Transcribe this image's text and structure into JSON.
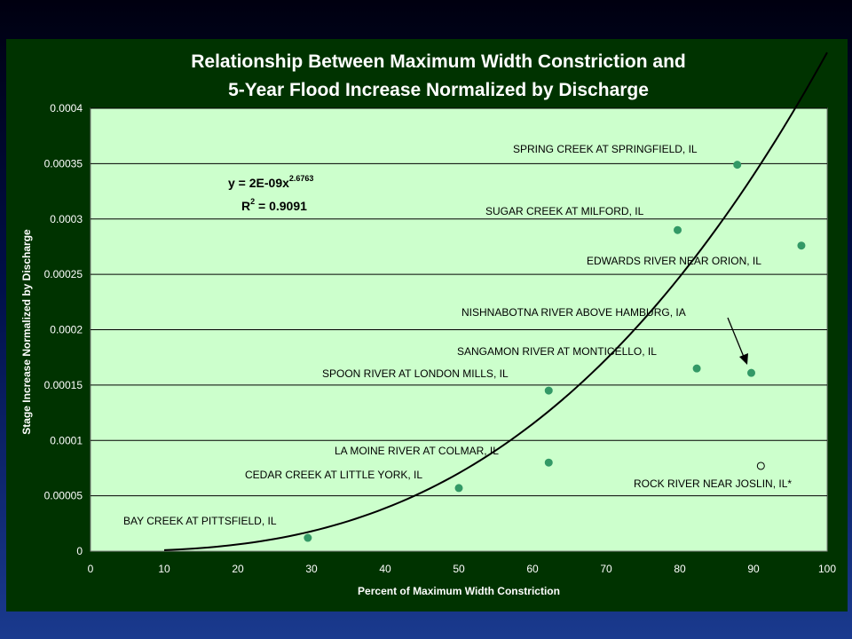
{
  "colors": {
    "panel": "#003300",
    "plot_area": "#ccffcc",
    "grid": "#000000",
    "marker": "#339966",
    "trend": "#000000",
    "text_light": "#ffffff"
  },
  "chart_data": {
    "type": "scatter",
    "title": "Relationship Between Maximum Width Constriction and",
    "subtitle": "5-Year Flood Increase Normalized by Discharge",
    "xlabel": "Percent of Maximum Width Constriction",
    "ylabel": "Stage Increase Normalized by Discharge",
    "xlim": [
      0,
      100
    ],
    "ylim": [
      0,
      0.0004
    ],
    "x_ticks": [
      "0",
      "10",
      "20",
      "30",
      "40",
      "50",
      "60",
      "70",
      "80",
      "90",
      "100"
    ],
    "y_ticks": [
      "0",
      "0.00005",
      "0.0001",
      "0.00015",
      "0.0002",
      "0.00025",
      "0.0003",
      "0.00035",
      "0.0004"
    ],
    "grid": "horizontal",
    "points": [
      {
        "label": "BAY CREEK AT PITTSFIELD, IL",
        "x": 29.5,
        "y": 1.2e-05,
        "filled": true
      },
      {
        "label": "CEDAR CREEK AT LITTLE YORK, IL",
        "x": 50,
        "y": 5.7e-05,
        "filled": true
      },
      {
        "label": "LA MOINE RIVER AT COLMAR, IL",
        "x": 62.2,
        "y": 8e-05,
        "filled": true
      },
      {
        "label": "SPOON RIVER AT LONDON MILLS, IL",
        "x": 62.2,
        "y": 0.000145,
        "filled": true
      },
      {
        "label": "SANGAMON RIVER AT MONTICELLO, IL",
        "x": 82.3,
        "y": 0.000165,
        "filled": true
      },
      {
        "label": "NISHNABOTNA RIVER ABOVE HAMBURG, IA",
        "x": 89.7,
        "y": 0.000161,
        "filled": true
      },
      {
        "label": "SUGAR CREEK AT MILFORD, IL",
        "x": 79.7,
        "y": 0.00029,
        "filled": true
      },
      {
        "label": "SPRING CREEK AT SPRINGFIELD, IL",
        "x": 87.8,
        "y": 0.000349,
        "filled": true
      },
      {
        "label": "EDWARDS RIVER NEAR ORION, IL",
        "x": 96.5,
        "y": 0.000276,
        "filled": true
      },
      {
        "label": "ROCK RIVER NEAR JOSLIN, IL*",
        "x": 91,
        "y": 7.7e-05,
        "filled": false
      }
    ],
    "trendline": {
      "equation_main": "y = 2E-09x",
      "equation_exp": "2.6763",
      "r2_main": "R",
      "r2_exp": "2",
      "r2_value": " = 0.9091",
      "coefficient": 2e-09,
      "exponent": 2.6763,
      "x_start": 10,
      "x_end": 100
    }
  }
}
